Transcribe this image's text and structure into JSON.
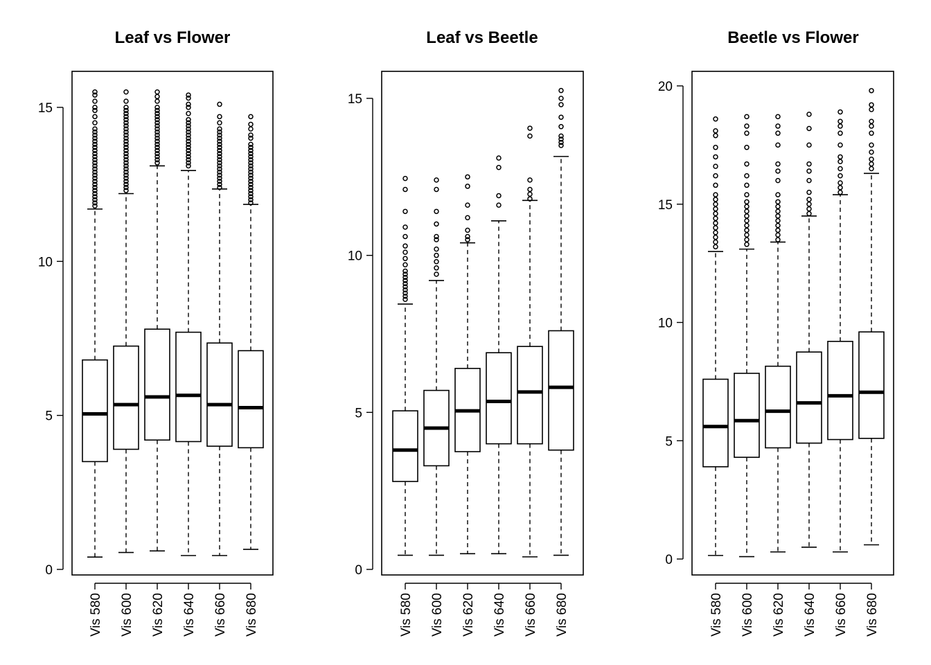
{
  "chart_data": [
    {
      "type": "boxplot",
      "title": "Leaf vs Flower",
      "categories": [
        "Vis 580",
        "Vis 600",
        "Vis 620",
        "Vis 640",
        "Vis 660",
        "Vis 680"
      ],
      "ylim": [
        0,
        15.5
      ],
      "yticks": [
        0,
        5,
        10,
        15
      ],
      "grid": false,
      "boxes": [
        {
          "whisker_low": 0.4,
          "q1": 3.5,
          "median": 5.05,
          "q3": 6.8,
          "whisker_high": 11.7,
          "outliers": [
            11.8,
            11.9,
            12.0,
            12.1,
            12.2,
            12.3,
            12.4,
            12.5,
            12.6,
            12.7,
            12.8,
            12.9,
            13.0,
            13.1,
            13.2,
            13.3,
            13.4,
            13.5,
            13.6,
            13.7,
            13.8,
            13.9,
            14.0,
            14.1,
            14.2,
            14.3,
            14.5,
            14.7,
            14.9,
            15.0,
            15.2,
            15.4,
            15.5
          ]
        },
        {
          "whisker_low": 0.55,
          "q1": 3.9,
          "median": 5.35,
          "q3": 7.25,
          "whisker_high": 12.2,
          "outliers": [
            12.3,
            12.4,
            12.5,
            12.6,
            12.7,
            12.8,
            12.9,
            13.0,
            13.1,
            13.2,
            13.3,
            13.4,
            13.5,
            13.6,
            13.7,
            13.8,
            13.9,
            14.0,
            14.1,
            14.2,
            14.3,
            14.4,
            14.5,
            14.6,
            14.7,
            14.8,
            14.9,
            15.0,
            15.2,
            15.5
          ]
        },
        {
          "whisker_low": 0.6,
          "q1": 4.2,
          "median": 5.6,
          "q3": 7.8,
          "whisker_high": 13.1,
          "outliers": [
            13.2,
            13.3,
            13.4,
            13.5,
            13.6,
            13.7,
            13.8,
            13.9,
            14.0,
            14.1,
            14.2,
            14.3,
            14.4,
            14.5,
            14.6,
            14.7,
            14.8,
            14.9,
            15.0,
            15.2,
            15.35,
            15.5
          ]
        },
        {
          "whisker_low": 0.45,
          "q1": 4.15,
          "median": 5.65,
          "q3": 7.7,
          "whisker_high": 12.95,
          "outliers": [
            13.1,
            13.2,
            13.3,
            13.4,
            13.5,
            13.6,
            13.7,
            13.8,
            13.9,
            14.0,
            14.1,
            14.2,
            14.3,
            14.4,
            14.5,
            14.6,
            14.8,
            15.0,
            15.1,
            15.3,
            15.4
          ]
        },
        {
          "whisker_low": 0.45,
          "q1": 4.0,
          "median": 5.35,
          "q3": 7.35,
          "whisker_high": 12.35,
          "outliers": [
            12.4,
            12.5,
            12.6,
            12.7,
            12.8,
            12.9,
            13.0,
            13.1,
            13.2,
            13.3,
            13.4,
            13.5,
            13.6,
            13.7,
            13.8,
            13.9,
            14.0,
            14.1,
            14.2,
            14.3,
            14.5,
            14.7,
            15.1
          ]
        },
        {
          "whisker_low": 0.65,
          "q1": 3.95,
          "median": 5.25,
          "q3": 7.1,
          "whisker_high": 11.85,
          "outliers": [
            11.9,
            12.0,
            12.1,
            12.2,
            12.3,
            12.4,
            12.5,
            12.6,
            12.7,
            12.8,
            12.9,
            13.0,
            13.1,
            13.2,
            13.3,
            13.4,
            13.5,
            13.6,
            13.7,
            13.8,
            14.0,
            14.1,
            14.3,
            14.45,
            14.7
          ]
        }
      ]
    },
    {
      "type": "boxplot",
      "title": "Leaf vs Beetle",
      "categories": [
        "Vis 580",
        "Vis 600",
        "Vis 620",
        "Vis 640",
        "Vis 660",
        "Vis 680"
      ],
      "ylim": [
        0,
        15.3
      ],
      "yticks": [
        0,
        5,
        10,
        15
      ],
      "grid": false,
      "boxes": [
        {
          "whisker_low": 0.45,
          "q1": 2.8,
          "median": 3.8,
          "q3": 5.05,
          "whisker_high": 8.45,
          "outliers": [
            8.6,
            8.7,
            8.8,
            8.9,
            9.0,
            9.1,
            9.2,
            9.3,
            9.4,
            9.5,
            9.7,
            9.9,
            10.1,
            10.3,
            10.6,
            10.9,
            11.4,
            12.1,
            12.45
          ]
        },
        {
          "whisker_low": 0.45,
          "q1": 3.3,
          "median": 4.5,
          "q3": 5.7,
          "whisker_high": 9.2,
          "outliers": [
            9.4,
            9.6,
            9.8,
            10.0,
            10.2,
            10.5,
            10.6,
            11.0,
            11.4,
            12.1,
            12.4
          ]
        },
        {
          "whisker_low": 0.5,
          "q1": 3.75,
          "median": 5.05,
          "q3": 6.4,
          "whisker_high": 10.4,
          "outliers": [
            10.5,
            10.6,
            10.8,
            11.2,
            11.6,
            12.2,
            12.5
          ]
        },
        {
          "whisker_low": 0.5,
          "q1": 4.0,
          "median": 5.35,
          "q3": 6.9,
          "whisker_high": 11.1,
          "outliers": [
            11.6,
            11.9,
            12.8,
            13.1
          ]
        },
        {
          "whisker_low": 0.4,
          "q1": 4.0,
          "median": 5.65,
          "q3": 7.1,
          "whisker_high": 11.75,
          "outliers": [
            11.8,
            11.95,
            12.1,
            12.4,
            13.8,
            14.05
          ]
        },
        {
          "whisker_low": 0.45,
          "q1": 3.8,
          "median": 5.8,
          "q3": 7.6,
          "whisker_high": 13.15,
          "outliers": [
            13.5,
            13.6,
            13.7,
            13.8,
            14.1,
            14.4,
            14.8,
            15.0,
            15.25
          ]
        }
      ]
    },
    {
      "type": "boxplot",
      "title": "Beetle vs Flower",
      "categories": [
        "Vis 580",
        "Vis 600",
        "Vis 620",
        "Vis 640",
        "Vis 660",
        "Vis 680"
      ],
      "ylim": [
        0,
        20
      ],
      "yticks": [
        0,
        5,
        10,
        15,
        20
      ],
      "grid": false,
      "boxes": [
        {
          "whisker_low": 0.15,
          "q1": 3.9,
          "median": 5.6,
          "q3": 7.6,
          "whisker_high": 13.0,
          "outliers": [
            13.2,
            13.4,
            13.6,
            13.8,
            14.0,
            14.2,
            14.4,
            14.6,
            14.8,
            15.0,
            15.2,
            15.4,
            15.8,
            16.2,
            16.6,
            17.0,
            17.4,
            17.9,
            18.1,
            18.6
          ]
        },
        {
          "whisker_low": 0.1,
          "q1": 4.3,
          "median": 5.85,
          "q3": 7.85,
          "whisker_high": 13.1,
          "outliers": [
            13.3,
            13.5,
            13.7,
            13.9,
            14.1,
            14.3,
            14.5,
            14.7,
            14.9,
            15.1,
            15.4,
            15.8,
            16.2,
            16.7,
            17.4,
            18.0,
            18.3,
            18.7
          ]
        },
        {
          "whisker_low": 0.3,
          "q1": 4.7,
          "median": 6.25,
          "q3": 8.15,
          "whisker_high": 13.4,
          "outliers": [
            13.5,
            13.7,
            13.9,
            14.1,
            14.3,
            14.5,
            14.7,
            14.9,
            15.1,
            15.4,
            16.0,
            16.4,
            16.7,
            17.5,
            18.0,
            18.3,
            18.7
          ]
        },
        {
          "whisker_low": 0.5,
          "q1": 4.9,
          "median": 6.6,
          "q3": 8.75,
          "whisker_high": 14.5,
          "outliers": [
            14.6,
            14.8,
            15.0,
            15.2,
            15.5,
            16.0,
            16.4,
            16.7,
            17.5,
            18.2,
            18.8
          ]
        },
        {
          "whisker_low": 0.3,
          "q1": 5.05,
          "median": 6.9,
          "q3": 9.2,
          "whisker_high": 15.4,
          "outliers": [
            15.5,
            15.7,
            15.9,
            16.2,
            16.5,
            16.8,
            17.0,
            17.5,
            18.0,
            18.3,
            18.5,
            18.9
          ]
        },
        {
          "whisker_low": 0.6,
          "q1": 5.1,
          "median": 7.05,
          "q3": 9.6,
          "whisker_high": 16.3,
          "outliers": [
            16.5,
            16.7,
            16.9,
            17.2,
            17.5,
            18.0,
            18.3,
            18.5,
            19.0,
            19.2,
            19.8
          ]
        }
      ]
    }
  ]
}
